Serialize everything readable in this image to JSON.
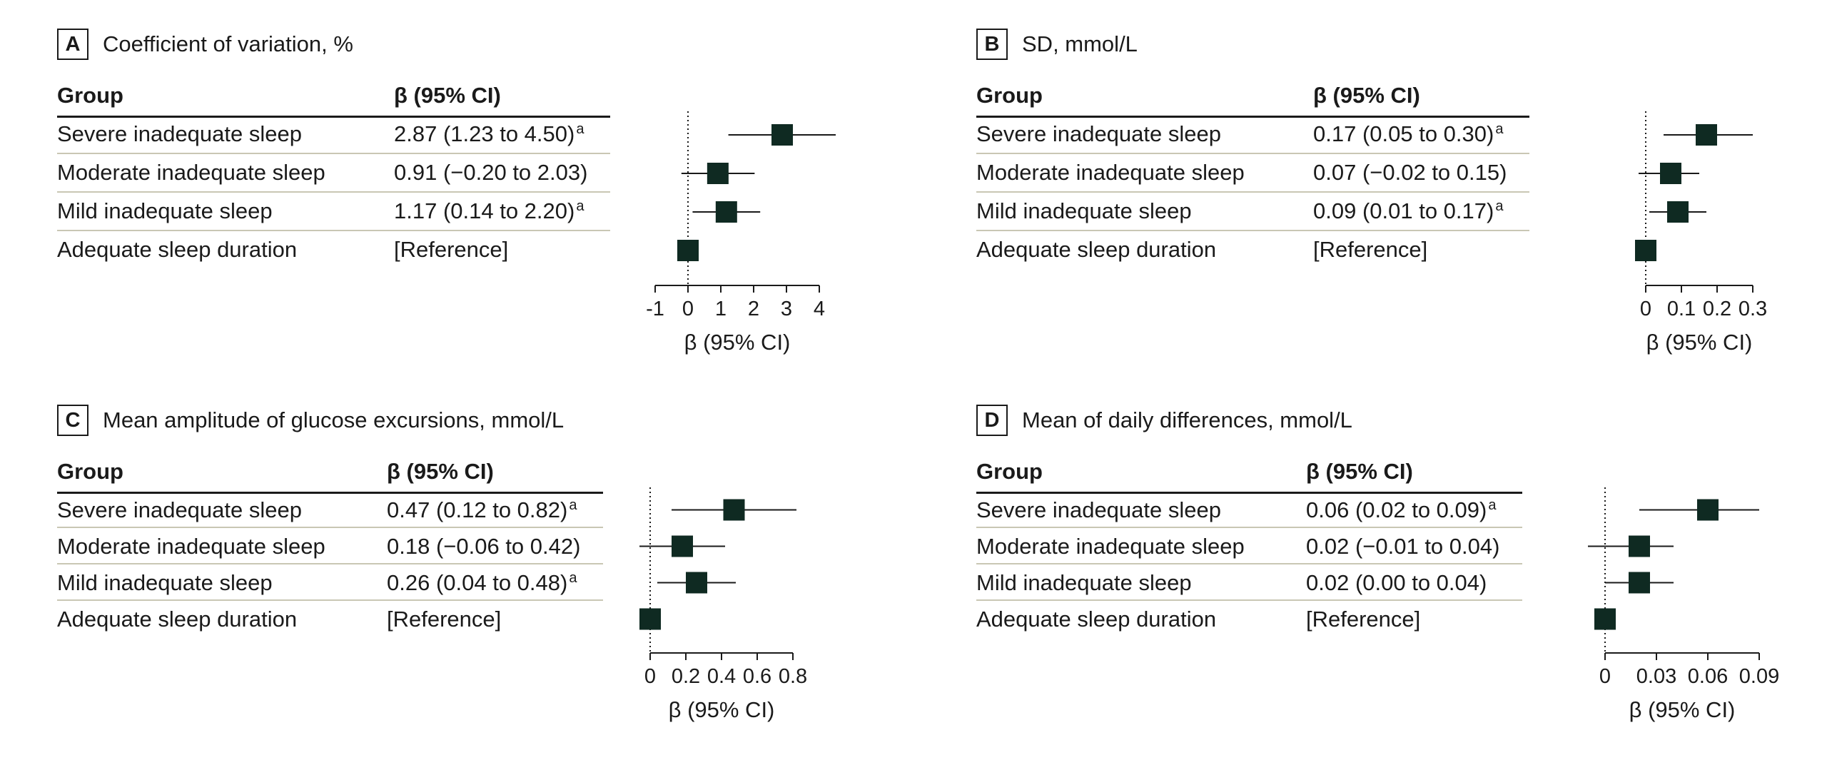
{
  "chart_data": [
    {
      "type": "forest",
      "panel": "A",
      "title": "Coefficient of variation, %",
      "col_group": "Group",
      "col_beta": "β (95% CI)",
      "rows": [
        {
          "group": "Severe inadequate sleep",
          "ci_text": "2.87 (1.23 to 4.50)",
          "sup": "a",
          "estimate": 2.87,
          "lower": 1.23,
          "upper": 4.5
        },
        {
          "group": "Moderate inadequate sleep",
          "ci_text": "0.91 (−0.20 to 2.03)",
          "sup": "",
          "estimate": 0.91,
          "lower": -0.2,
          "upper": 2.03
        },
        {
          "group": "Mild inadequate sleep",
          "ci_text": "1.17 (0.14 to 2.20)",
          "sup": "a",
          "estimate": 1.17,
          "lower": 0.14,
          "upper": 2.2
        },
        {
          "group": "Adequate sleep duration",
          "ci_text": "[Reference]",
          "sup": "",
          "estimate": 0,
          "lower": null,
          "upper": null
        }
      ],
      "xlabel": "β (95% CI)",
      "xlim": [
        -1,
        4
      ],
      "ticks": [
        -1,
        0,
        1,
        2,
        3,
        4
      ],
      "tick_labels": [
        "-1",
        "0",
        "1",
        "2",
        "3",
        "4"
      ]
    },
    {
      "type": "forest",
      "panel": "B",
      "title": "SD, mmol/L",
      "col_group": "Group",
      "col_beta": "β (95% CI)",
      "rows": [
        {
          "group": "Severe inadequate sleep",
          "ci_text": "0.17 (0.05 to 0.30)",
          "sup": "a",
          "estimate": 0.17,
          "lower": 0.05,
          "upper": 0.3
        },
        {
          "group": "Moderate inadequate sleep",
          "ci_text": "0.07 (−0.02 to 0.15)",
          "sup": "",
          "estimate": 0.07,
          "lower": -0.02,
          "upper": 0.15
        },
        {
          "group": "Mild inadequate sleep",
          "ci_text": "0.09 (0.01 to 0.17)",
          "sup": "a",
          "estimate": 0.09,
          "lower": 0.01,
          "upper": 0.17
        },
        {
          "group": "Adequate sleep duration",
          "ci_text": "[Reference]",
          "sup": "",
          "estimate": 0,
          "lower": null,
          "upper": null
        }
      ],
      "xlabel": "β (95% CI)",
      "xlim": [
        0,
        0.3
      ],
      "ticks": [
        0,
        0.1,
        0.2,
        0.3
      ],
      "tick_labels": [
        "0",
        "0.1",
        "0.2",
        "0.3"
      ]
    },
    {
      "type": "forest",
      "panel": "C",
      "title": "Mean amplitude of glucose excursions, mmol/L",
      "col_group": "Group",
      "col_beta": "β (95% CI)",
      "rows": [
        {
          "group": "Severe inadequate sleep",
          "ci_text": "0.47 (0.12 to 0.82)",
          "sup": "a",
          "estimate": 0.47,
          "lower": 0.12,
          "upper": 0.82
        },
        {
          "group": "Moderate inadequate sleep",
          "ci_text": "0.18 (−0.06 to 0.42)",
          "sup": "",
          "estimate": 0.18,
          "lower": -0.06,
          "upper": 0.42
        },
        {
          "group": "Mild inadequate sleep",
          "ci_text": "0.26 (0.04 to 0.48)",
          "sup": "a",
          "estimate": 0.26,
          "lower": 0.04,
          "upper": 0.48
        },
        {
          "group": "Adequate sleep duration",
          "ci_text": "[Reference]",
          "sup": "",
          "estimate": 0,
          "lower": null,
          "upper": null
        }
      ],
      "xlabel": "β (95% CI)",
      "xlim": [
        0,
        0.8
      ],
      "ticks": [
        0,
        0.2,
        0.4,
        0.6,
        0.8
      ],
      "tick_labels": [
        "0",
        "0.2",
        "0.4",
        "0.6",
        "0.8"
      ]
    },
    {
      "type": "forest",
      "panel": "D",
      "title": "Mean of daily differences, mmol/L",
      "col_group": "Group",
      "col_beta": "β (95% CI)",
      "rows": [
        {
          "group": "Severe inadequate sleep",
          "ci_text": "0.06 (0.02 to 0.09)",
          "sup": "a",
          "estimate": 0.06,
          "lower": 0.02,
          "upper": 0.09
        },
        {
          "group": "Moderate inadequate sleep",
          "ci_text": "0.02 (−0.01 to 0.04)",
          "sup": "",
          "estimate": 0.02,
          "lower": -0.01,
          "upper": 0.04
        },
        {
          "group": "Mild inadequate sleep",
          "ci_text": "0.02 (0.00 to 0.04)",
          "sup": "",
          "estimate": 0.02,
          "lower": 0.0,
          "upper": 0.04
        },
        {
          "group": "Adequate sleep duration",
          "ci_text": "[Reference]",
          "sup": "",
          "estimate": 0,
          "lower": null,
          "upper": null
        }
      ],
      "xlabel": "β (95% CI)",
      "xlim": [
        0,
        0.09
      ],
      "ticks": [
        0,
        0.03,
        0.06,
        0.09
      ],
      "tick_labels": [
        "0",
        "0.03",
        "0.06",
        "0.09"
      ]
    }
  ],
  "colors": {
    "marker": "#0f2a22",
    "line": "#1a1a1a",
    "row_divider": "#c9c7b4"
  }
}
